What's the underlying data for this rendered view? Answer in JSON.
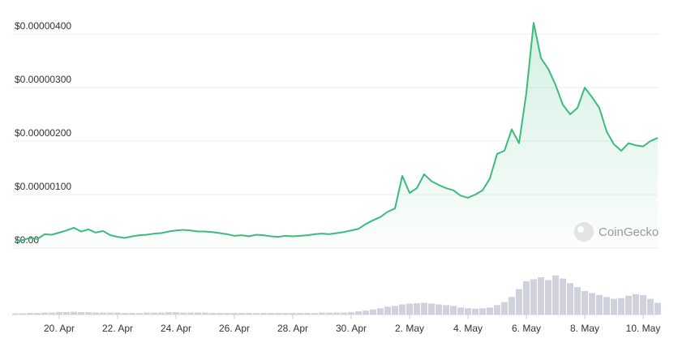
{
  "chart_data": {
    "type": "line",
    "watermark": "CoinGecko",
    "categories": [
      null,
      null,
      null,
      null,
      null,
      null,
      "20. Apr",
      null,
      null,
      null,
      null,
      null,
      null,
      null,
      "22. Apr",
      null,
      null,
      null,
      null,
      null,
      null,
      null,
      "24. Apr",
      null,
      null,
      null,
      null,
      null,
      null,
      null,
      "26. Apr",
      null,
      null,
      null,
      null,
      null,
      null,
      null,
      "28. Apr",
      null,
      null,
      null,
      null,
      null,
      null,
      null,
      "30. Apr",
      null,
      null,
      null,
      null,
      null,
      null,
      null,
      "2. May",
      null,
      null,
      null,
      null,
      null,
      null,
      null,
      "4. May",
      null,
      null,
      null,
      null,
      null,
      null,
      null,
      "6. May",
      null,
      null,
      null,
      null,
      null,
      null,
      null,
      "8. May",
      null,
      null,
      null,
      null,
      null,
      null,
      null,
      "10. May",
      null,
      null
    ],
    "series": [
      {
        "color": "#3dbb7e",
        "values": [
          1.4e-07,
          1.5e-07,
          1.9e-07,
          1.7e-07,
          2.6e-07,
          2.5e-07,
          2.9e-07,
          3.3e-07,
          3.8e-07,
          3.1e-07,
          3.5e-07,
          2.9e-07,
          3.2e-07,
          2.4e-07,
          2.1e-07,
          1.9e-07,
          2.2e-07,
          2.4e-07,
          2.5e-07,
          2.7e-07,
          2.8e-07,
          3.1e-07,
          3.3e-07,
          3.4e-07,
          3.3e-07,
          3.1e-07,
          3.1e-07,
          3e-07,
          2.8e-07,
          2.6e-07,
          2.3e-07,
          2.4e-07,
          2.2e-07,
          2.5e-07,
          2.4e-07,
          2.2e-07,
          2.1e-07,
          2.3e-07,
          2.2e-07,
          2.3e-07,
          2.4e-07,
          2.6e-07,
          2.7e-07,
          2.6e-07,
          2.8e-07,
          3e-07,
          3.3e-07,
          3.6e-07,
          4.5e-07,
          5.2e-07,
          5.8e-07,
          6.8e-07,
          7.4e-07,
          1.35e-06,
          1.03e-06,
          1.12e-06,
          1.38e-06,
          1.25e-06,
          1.18e-06,
          1.12e-06,
          1.08e-06,
          9.8e-07,
          9.4e-07,
          1e-06,
          1.08e-06,
          1.3e-06,
          1.76e-06,
          1.82e-06,
          2.22e-06,
          1.96e-06,
          2.9e-06,
          4.21e-06,
          3.55e-06,
          3.35e-06,
          3.05e-06,
          2.68e-06,
          2.5e-06,
          2.62e-06,
          3e-06,
          2.82e-06,
          2.62e-06,
          2.18e-06,
          1.94e-06,
          1.82e-06,
          1.96e-06,
          1.92e-06,
          1.9e-06,
          2e-06,
          2.06e-06
        ]
      },
      {
        "color": "#cfd2dc",
        "axis": "y2",
        "values": [
          3,
          3,
          4,
          4,
          5,
          5,
          6,
          6,
          7,
          6,
          6,
          5,
          5,
          5,
          5,
          4,
          4,
          4,
          5,
          5,
          5,
          6,
          6,
          5,
          5,
          5,
          5,
          4,
          4,
          4,
          4,
          4,
          4,
          4,
          4,
          4,
          4,
          4,
          4,
          4,
          4,
          4,
          5,
          5,
          5,
          5,
          6,
          8,
          10,
          13,
          16,
          20,
          22,
          26,
          28,
          29,
          30,
          28,
          26,
          24,
          22,
          18,
          16,
          15,
          16,
          18,
          24,
          32,
          45,
          65,
          85,
          90,
          95,
          88,
          100,
          92,
          80,
          70,
          60,
          55,
          50,
          45,
          40,
          42,
          48,
          52,
          50,
          40,
          30
        ]
      }
    ],
    "ylim": [
      0,
      4.5e-06
    ],
    "yticks": [
      {
        "value": 0,
        "label": "$0.00"
      },
      {
        "value": 1e-06,
        "label": "$0.00000100"
      },
      {
        "value": 2e-06,
        "label": "$0.00000200"
      },
      {
        "value": 3e-06,
        "label": "$0.00000300"
      },
      {
        "value": 4e-06,
        "label": "$0.00000400"
      }
    ],
    "y2lim": [
      0,
      120
    ],
    "grid": true
  }
}
